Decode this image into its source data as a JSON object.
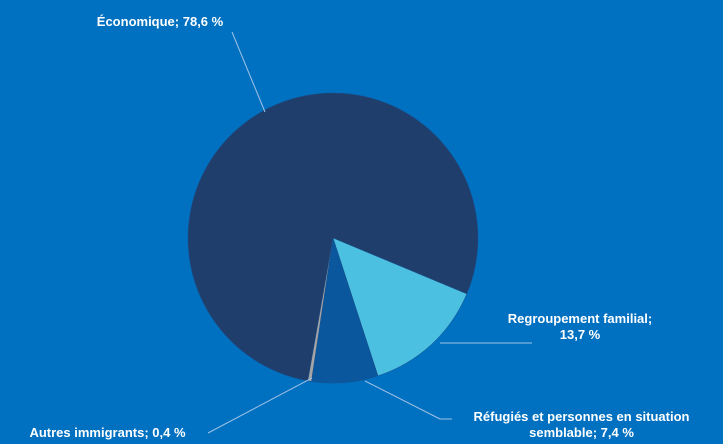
{
  "chart_data": {
    "type": "pie",
    "values": [
      78.6,
      13.7,
      7.4,
      0.4
    ],
    "value_labels": [
      "Économique; 78,6 %",
      "Regroupement familial; 13,7 %",
      "Réfugiés et personnes en situation semblable; 7,4 %",
      "Autres immigrants; 0,4 %"
    ],
    "colors": [
      "#1f3e6c",
      "#4cc0e0",
      "#0b579e",
      "#a5a5a5"
    ]
  }
}
